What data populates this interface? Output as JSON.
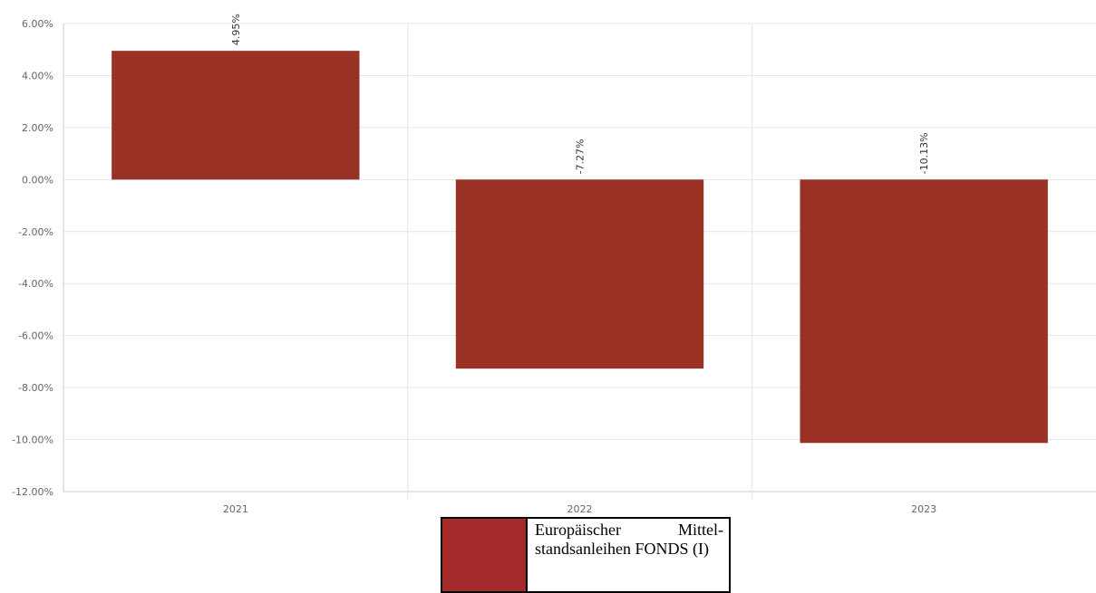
{
  "chart_data": {
    "type": "bar",
    "categories": [
      "2021",
      "2022",
      "2023"
    ],
    "series": [
      {
        "name": "Europäischer Mittel­standsanleihen FONDS (I)",
        "values": [
          4.95,
          -7.27,
          -10.13
        ],
        "data_labels": [
          "4.95%",
          "-7.27%",
          "-10.13%"
        ],
        "color": "#9a3125"
      }
    ],
    "ylim": [
      -12,
      6
    ],
    "yticks": [
      6,
      4,
      2,
      0,
      -2,
      -4,
      -6,
      -8,
      -10,
      -12
    ],
    "ytick_labels": [
      "6.00%",
      "4.00%",
      "2.00%",
      "0.00%",
      "-2.00%",
      "-4.00%",
      "-6.00%",
      "-8.00%",
      "-10.00%",
      "-12.00%"
    ],
    "grid": true,
    "legend_position": "bottom-center",
    "legend_swatch_color": "#a52a2a",
    "title": "",
    "xlabel": "",
    "ylabel": ""
  }
}
